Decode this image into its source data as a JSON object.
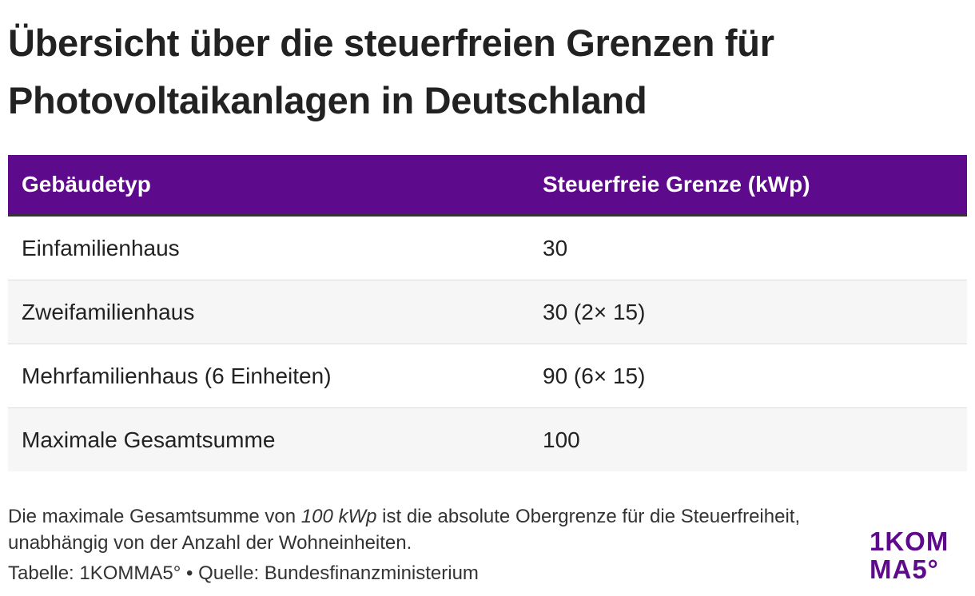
{
  "header": {
    "title": "Übersicht über die steuerfreien Grenzen für Photovoltaikanlagen in Deutschland"
  },
  "table": {
    "columns": [
      "Gebäudetyp",
      "Steuerfreie Grenze (kWp)"
    ],
    "rows": [
      [
        "Einfamilienhaus",
        "30"
      ],
      [
        "Zweifamilienhaus",
        "30 (2× 15)"
      ],
      [
        "Mehrfamilienhaus (6 Einheiten)",
        "90 (6× 15)"
      ],
      [
        "Maximale Gesamtsumme",
        "100"
      ]
    ]
  },
  "footer": {
    "note": [
      "Die maximale Gesamtsumme von ",
      "100 kWp",
      " ist die absolute Obergrenze für die Steuerfreiheit, unabhängig von der Anzahl der Wohneinheiten."
    ],
    "source": "Tabelle: 1KOMMA5° • Quelle: Bundesfinanzministerium",
    "logo": [
      "1KOM",
      "MA5°"
    ]
  }
}
